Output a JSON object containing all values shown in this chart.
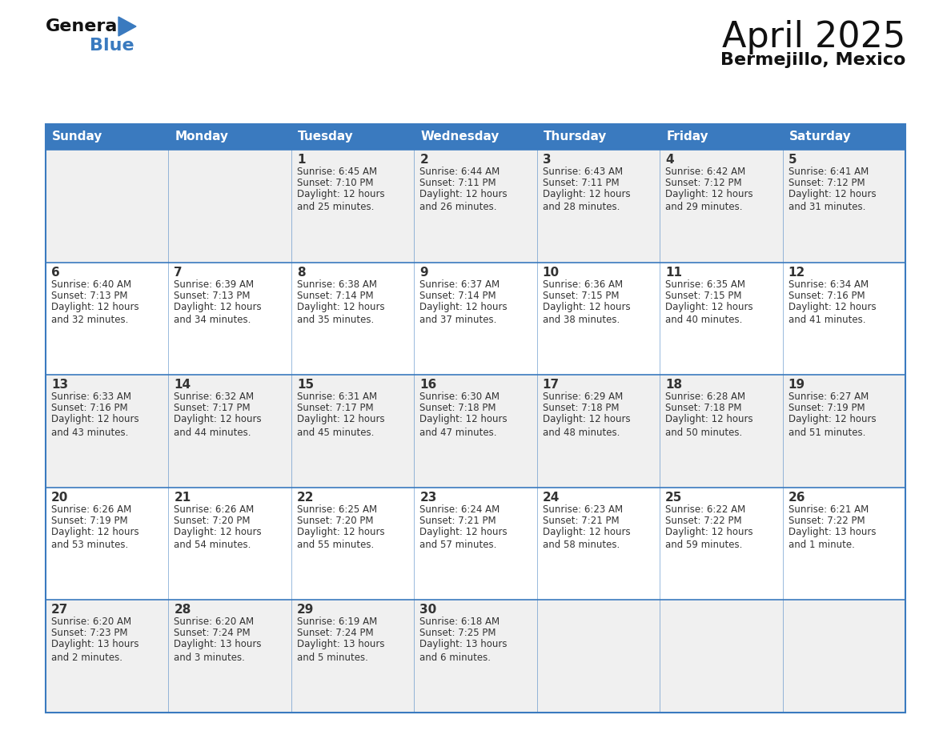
{
  "title": "April 2025",
  "subtitle": "Bermejillo, Mexico",
  "header_color": "#3a7abf",
  "header_text_color": "#ffffff",
  "bg_color": "#ffffff",
  "row_color_odd": "#f0f0f0",
  "row_color_even": "#ffffff",
  "border_color": "#3a7abf",
  "cell_text_color": "#333333",
  "days_of_week": [
    "Sunday",
    "Monday",
    "Tuesday",
    "Wednesday",
    "Thursday",
    "Friday",
    "Saturday"
  ],
  "calendar_data": [
    [
      {
        "day": "",
        "sunrise": "",
        "sunset": "",
        "daylight": ""
      },
      {
        "day": "",
        "sunrise": "",
        "sunset": "",
        "daylight": ""
      },
      {
        "day": "1",
        "sunrise": "Sunrise: 6:45 AM",
        "sunset": "Sunset: 7:10 PM",
        "daylight": "Daylight: 12 hours\nand 25 minutes."
      },
      {
        "day": "2",
        "sunrise": "Sunrise: 6:44 AM",
        "sunset": "Sunset: 7:11 PM",
        "daylight": "Daylight: 12 hours\nand 26 minutes."
      },
      {
        "day": "3",
        "sunrise": "Sunrise: 6:43 AM",
        "sunset": "Sunset: 7:11 PM",
        "daylight": "Daylight: 12 hours\nand 28 minutes."
      },
      {
        "day": "4",
        "sunrise": "Sunrise: 6:42 AM",
        "sunset": "Sunset: 7:12 PM",
        "daylight": "Daylight: 12 hours\nand 29 minutes."
      },
      {
        "day": "5",
        "sunrise": "Sunrise: 6:41 AM",
        "sunset": "Sunset: 7:12 PM",
        "daylight": "Daylight: 12 hours\nand 31 minutes."
      }
    ],
    [
      {
        "day": "6",
        "sunrise": "Sunrise: 6:40 AM",
        "sunset": "Sunset: 7:13 PM",
        "daylight": "Daylight: 12 hours\nand 32 minutes."
      },
      {
        "day": "7",
        "sunrise": "Sunrise: 6:39 AM",
        "sunset": "Sunset: 7:13 PM",
        "daylight": "Daylight: 12 hours\nand 34 minutes."
      },
      {
        "day": "8",
        "sunrise": "Sunrise: 6:38 AM",
        "sunset": "Sunset: 7:14 PM",
        "daylight": "Daylight: 12 hours\nand 35 minutes."
      },
      {
        "day": "9",
        "sunrise": "Sunrise: 6:37 AM",
        "sunset": "Sunset: 7:14 PM",
        "daylight": "Daylight: 12 hours\nand 37 minutes."
      },
      {
        "day": "10",
        "sunrise": "Sunrise: 6:36 AM",
        "sunset": "Sunset: 7:15 PM",
        "daylight": "Daylight: 12 hours\nand 38 minutes."
      },
      {
        "day": "11",
        "sunrise": "Sunrise: 6:35 AM",
        "sunset": "Sunset: 7:15 PM",
        "daylight": "Daylight: 12 hours\nand 40 minutes."
      },
      {
        "day": "12",
        "sunrise": "Sunrise: 6:34 AM",
        "sunset": "Sunset: 7:16 PM",
        "daylight": "Daylight: 12 hours\nand 41 minutes."
      }
    ],
    [
      {
        "day": "13",
        "sunrise": "Sunrise: 6:33 AM",
        "sunset": "Sunset: 7:16 PM",
        "daylight": "Daylight: 12 hours\nand 43 minutes."
      },
      {
        "day": "14",
        "sunrise": "Sunrise: 6:32 AM",
        "sunset": "Sunset: 7:17 PM",
        "daylight": "Daylight: 12 hours\nand 44 minutes."
      },
      {
        "day": "15",
        "sunrise": "Sunrise: 6:31 AM",
        "sunset": "Sunset: 7:17 PM",
        "daylight": "Daylight: 12 hours\nand 45 minutes."
      },
      {
        "day": "16",
        "sunrise": "Sunrise: 6:30 AM",
        "sunset": "Sunset: 7:18 PM",
        "daylight": "Daylight: 12 hours\nand 47 minutes."
      },
      {
        "day": "17",
        "sunrise": "Sunrise: 6:29 AM",
        "sunset": "Sunset: 7:18 PM",
        "daylight": "Daylight: 12 hours\nand 48 minutes."
      },
      {
        "day": "18",
        "sunrise": "Sunrise: 6:28 AM",
        "sunset": "Sunset: 7:18 PM",
        "daylight": "Daylight: 12 hours\nand 50 minutes."
      },
      {
        "day": "19",
        "sunrise": "Sunrise: 6:27 AM",
        "sunset": "Sunset: 7:19 PM",
        "daylight": "Daylight: 12 hours\nand 51 minutes."
      }
    ],
    [
      {
        "day": "20",
        "sunrise": "Sunrise: 6:26 AM",
        "sunset": "Sunset: 7:19 PM",
        "daylight": "Daylight: 12 hours\nand 53 minutes."
      },
      {
        "day": "21",
        "sunrise": "Sunrise: 6:26 AM",
        "sunset": "Sunset: 7:20 PM",
        "daylight": "Daylight: 12 hours\nand 54 minutes."
      },
      {
        "day": "22",
        "sunrise": "Sunrise: 6:25 AM",
        "sunset": "Sunset: 7:20 PM",
        "daylight": "Daylight: 12 hours\nand 55 minutes."
      },
      {
        "day": "23",
        "sunrise": "Sunrise: 6:24 AM",
        "sunset": "Sunset: 7:21 PM",
        "daylight": "Daylight: 12 hours\nand 57 minutes."
      },
      {
        "day": "24",
        "sunrise": "Sunrise: 6:23 AM",
        "sunset": "Sunset: 7:21 PM",
        "daylight": "Daylight: 12 hours\nand 58 minutes."
      },
      {
        "day": "25",
        "sunrise": "Sunrise: 6:22 AM",
        "sunset": "Sunset: 7:22 PM",
        "daylight": "Daylight: 12 hours\nand 59 minutes."
      },
      {
        "day": "26",
        "sunrise": "Sunrise: 6:21 AM",
        "sunset": "Sunset: 7:22 PM",
        "daylight": "Daylight: 13 hours\nand 1 minute."
      }
    ],
    [
      {
        "day": "27",
        "sunrise": "Sunrise: 6:20 AM",
        "sunset": "Sunset: 7:23 PM",
        "daylight": "Daylight: 13 hours\nand 2 minutes."
      },
      {
        "day": "28",
        "sunrise": "Sunrise: 6:20 AM",
        "sunset": "Sunset: 7:24 PM",
        "daylight": "Daylight: 13 hours\nand 3 minutes."
      },
      {
        "day": "29",
        "sunrise": "Sunrise: 6:19 AM",
        "sunset": "Sunset: 7:24 PM",
        "daylight": "Daylight: 13 hours\nand 5 minutes."
      },
      {
        "day": "30",
        "sunrise": "Sunrise: 6:18 AM",
        "sunset": "Sunset: 7:25 PM",
        "daylight": "Daylight: 13 hours\nand 6 minutes."
      },
      {
        "day": "",
        "sunrise": "",
        "sunset": "",
        "daylight": ""
      },
      {
        "day": "",
        "sunrise": "",
        "sunset": "",
        "daylight": ""
      },
      {
        "day": "",
        "sunrise": "",
        "sunset": "",
        "daylight": ""
      }
    ]
  ],
  "logo_text1": "General",
  "logo_text2": "Blue",
  "logo_triangle_color": "#3a7abf",
  "title_fontsize": 32,
  "subtitle_fontsize": 16,
  "header_fontsize": 11,
  "day_num_fontsize": 11,
  "cell_fontsize": 8.5
}
